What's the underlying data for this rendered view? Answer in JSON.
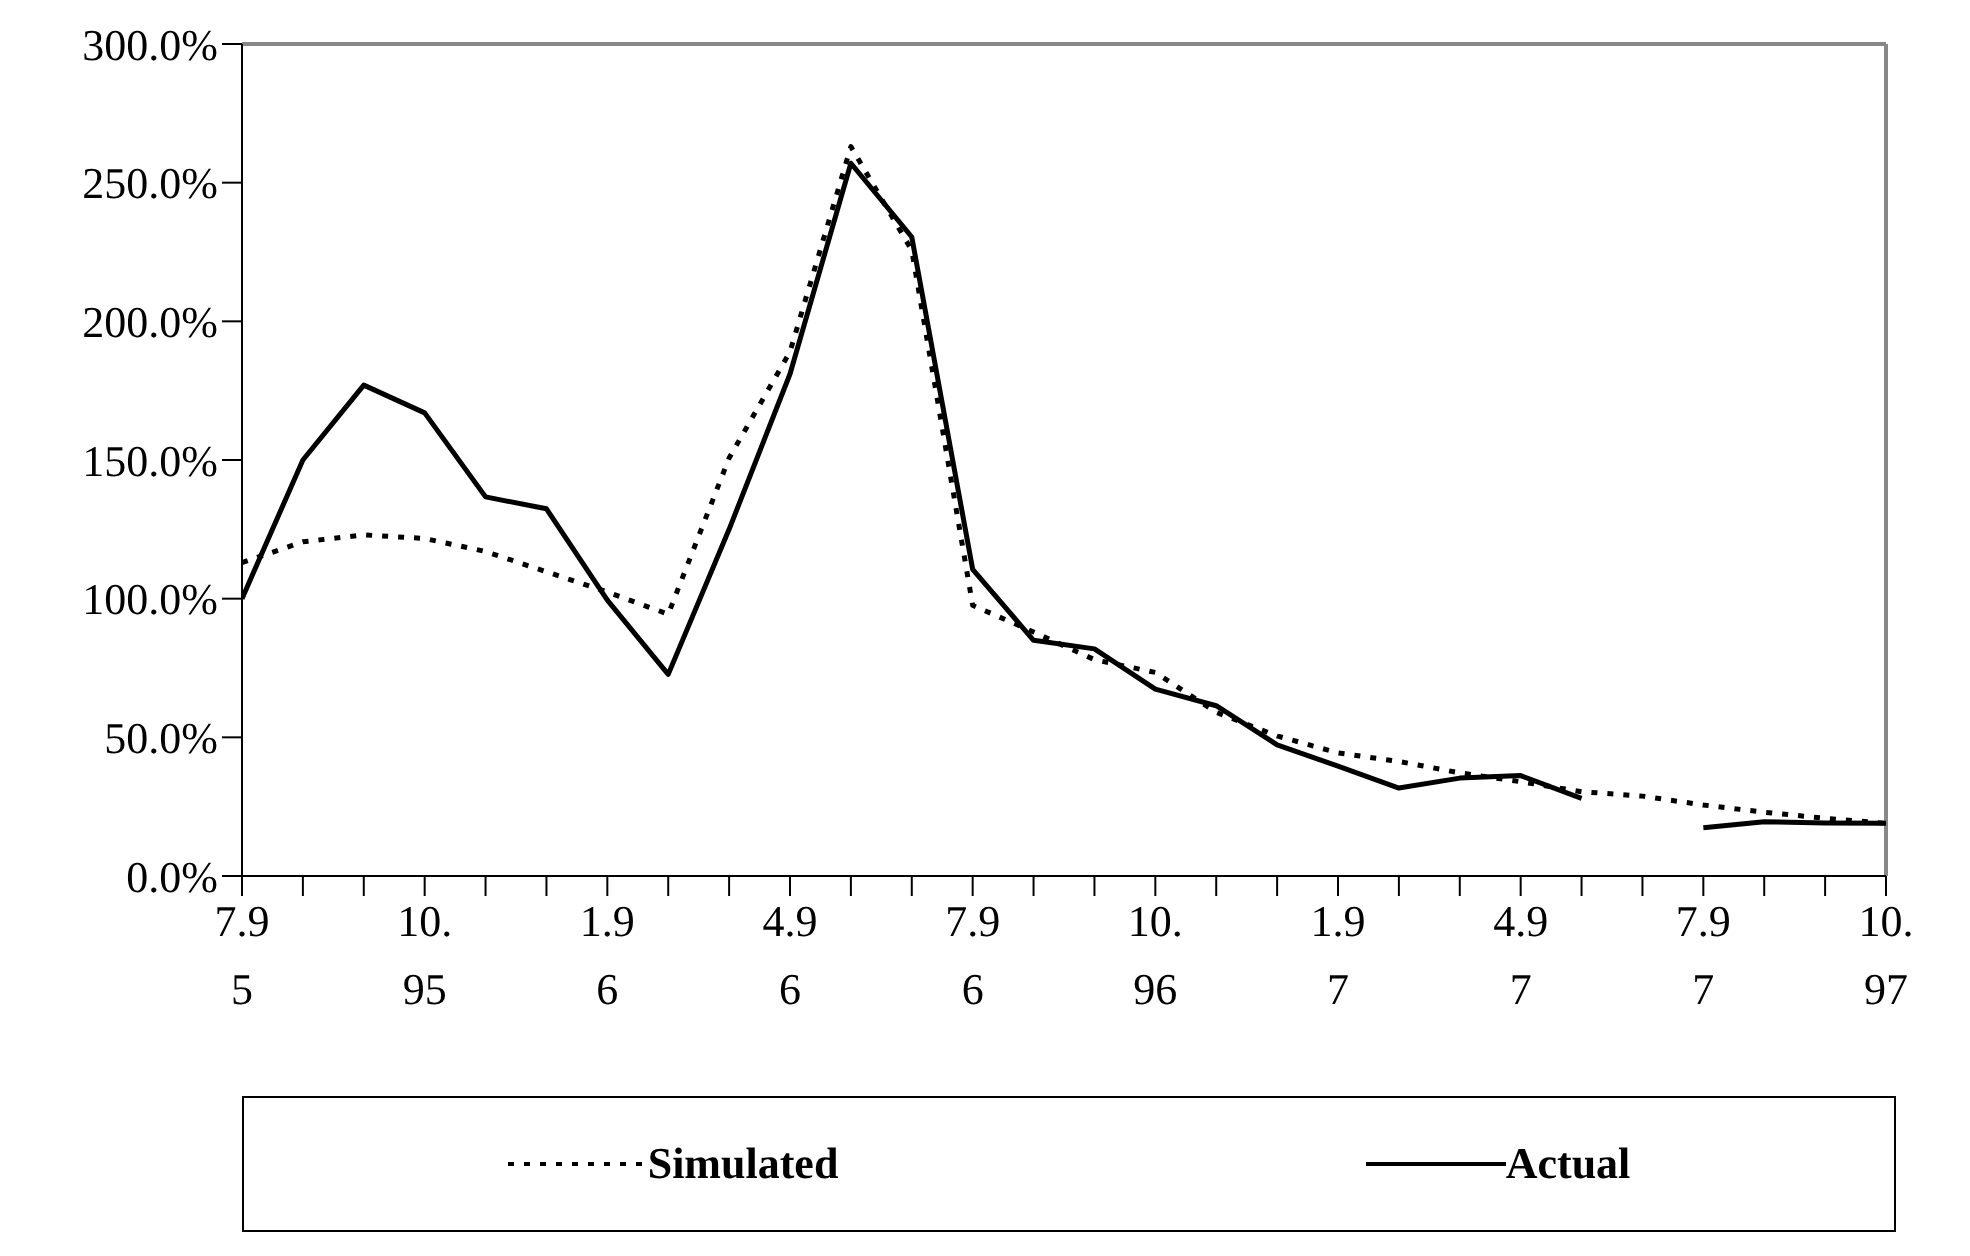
{
  "chart_data": {
    "type": "line",
    "categories": [
      "7.95",
      null,
      null,
      "10.95",
      null,
      null,
      "1.96",
      null,
      null,
      "4.96",
      null,
      null,
      "7.96",
      null,
      null,
      "10.96",
      null,
      null,
      "1.97",
      null,
      null,
      "4.97",
      null,
      null,
      "7.97",
      null,
      null,
      "10.97"
    ],
    "series": [
      {
        "name": "Simulated",
        "color": "#000000",
        "line_style": "dotted",
        "values": [
          113,
          120.5,
          123,
          121.7,
          117,
          109.7,
          102.4,
          94.4,
          150.7,
          189,
          263,
          225.6,
          97.6,
          88,
          78,
          73.4,
          59,
          50.5,
          44.4,
          41.3,
          37.2,
          34,
          30.4,
          28.8,
          25.6,
          23,
          20.8,
          19
        ]
      },
      {
        "name": "Actual",
        "color": "#000000",
        "line_style": "solid",
        "values": [
          100,
          150,
          177,
          167,
          136.7,
          132.4,
          99.5,
          72.7,
          125,
          181,
          257,
          230.4,
          110.6,
          85,
          81.9,
          67.4,
          61.4,
          47.3,
          39.6,
          31.7,
          35.3,
          36.2,
          28,
          null,
          17.4,
          19.6,
          19.1,
          19
        ]
      }
    ],
    "ylim": [
      0,
      300
    ],
    "yticks": [
      {
        "value": 0,
        "label": "0.0%"
      },
      {
        "value": 50,
        "label": "50.0%"
      },
      {
        "value": 100,
        "label": "100.0%"
      },
      {
        "value": 150,
        "label": "150.0%"
      },
      {
        "value": 200,
        "label": "200.0%"
      },
      {
        "value": 250,
        "label": "250.0%"
      },
      {
        "value": 300,
        "label": "300.0%"
      }
    ],
    "grid": false,
    "legend": "bottom",
    "marker": "none"
  }
}
